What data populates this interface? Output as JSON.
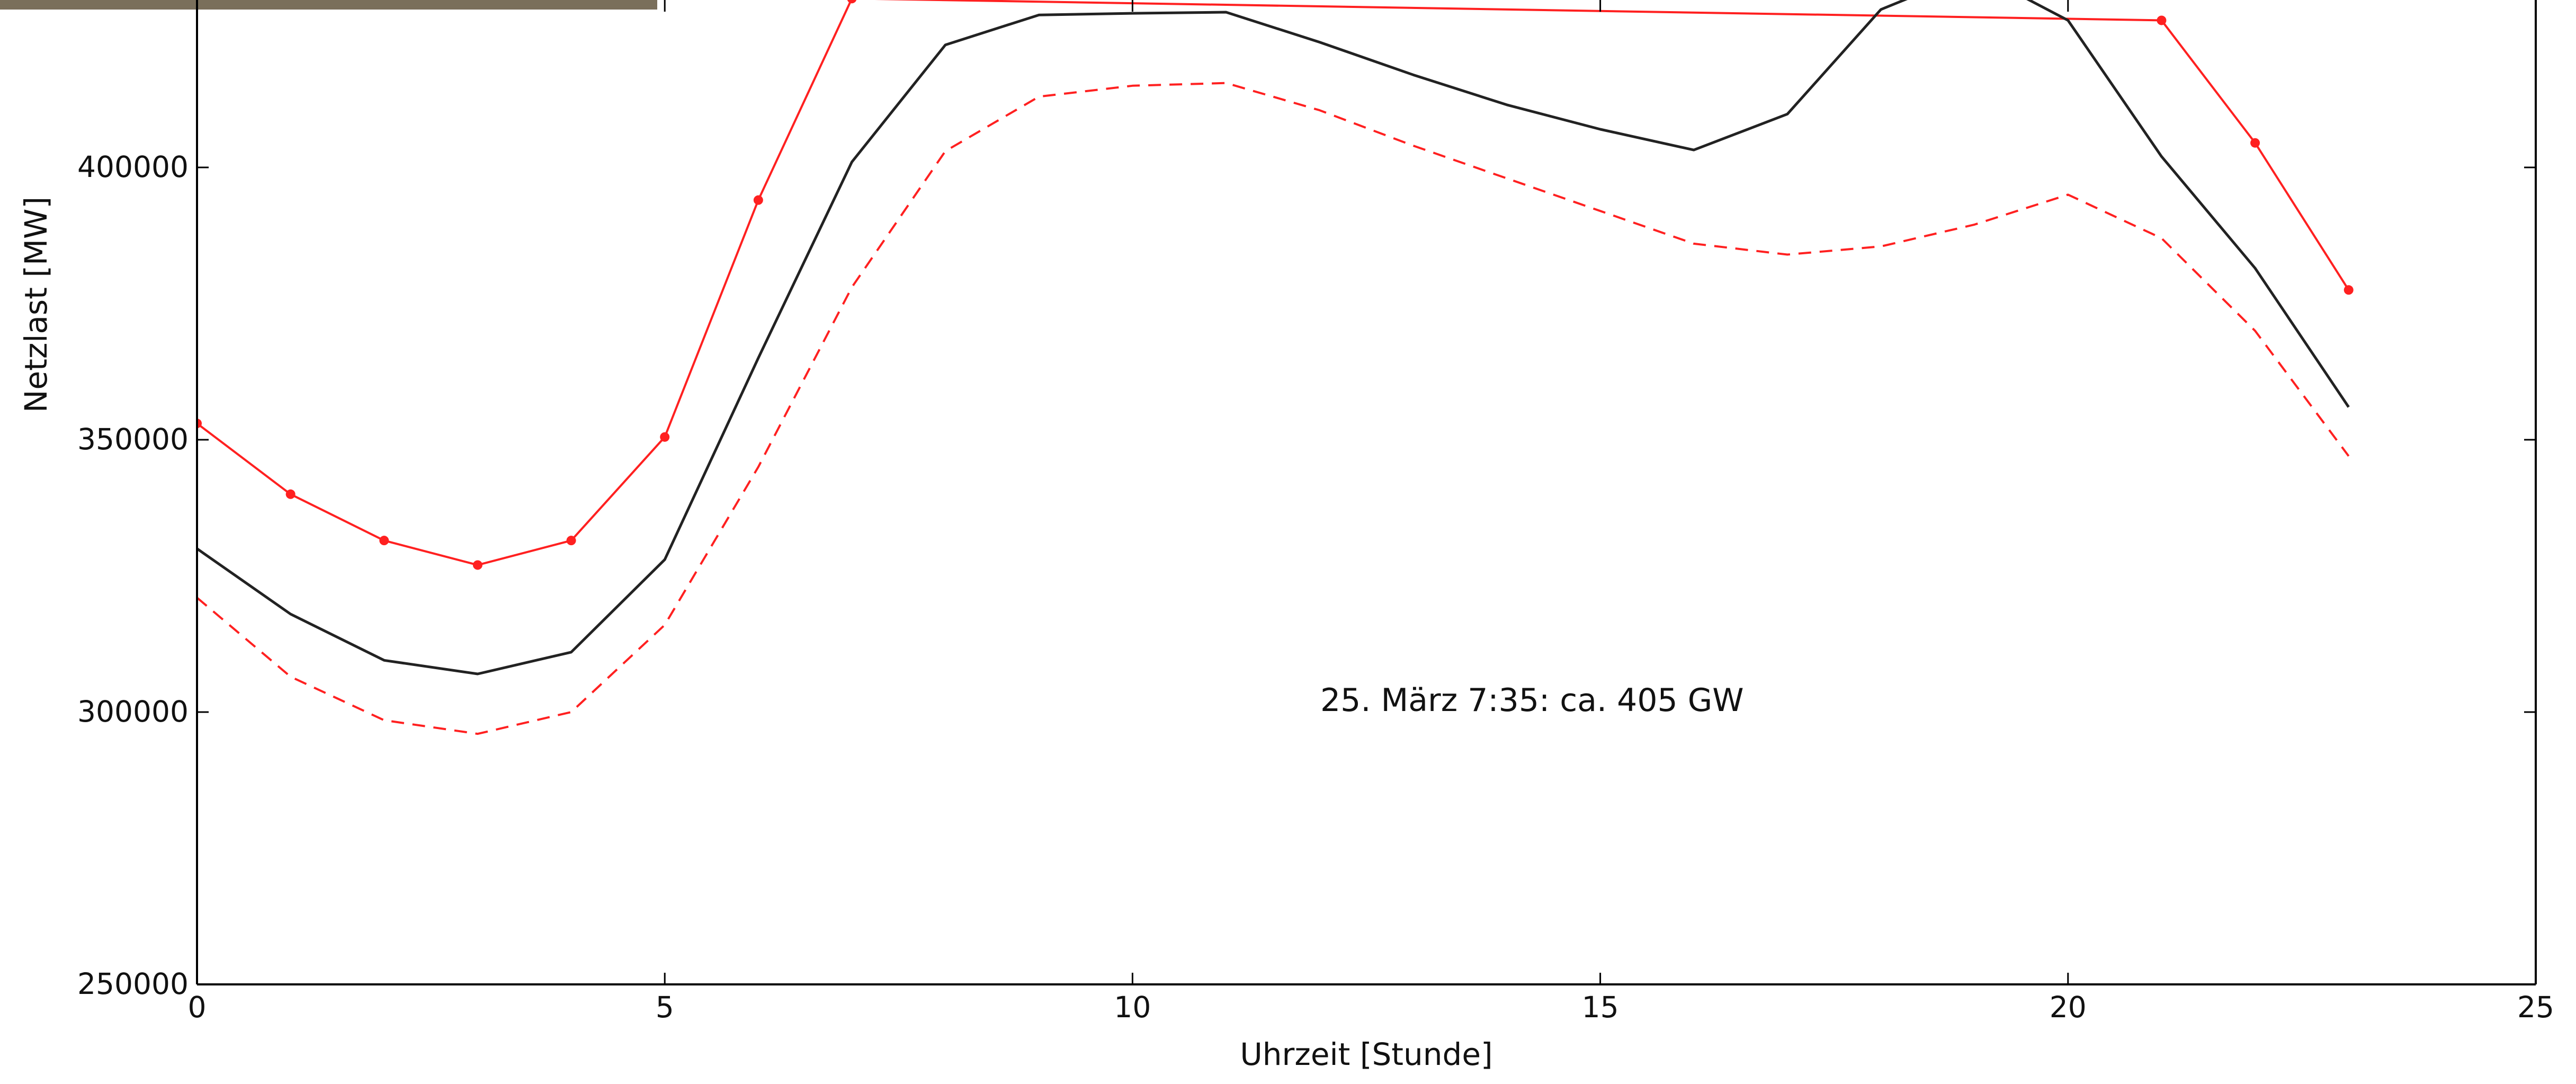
{
  "chart_data": {
    "type": "line",
    "title": "",
    "xlabel": "Uhrzeit [Stunde]",
    "ylabel": "Netzlast [MW]",
    "xlim": [
      0,
      25
    ],
    "ylim": [
      250000,
      430000
    ],
    "x_ticks": [
      0,
      5,
      10,
      15,
      20,
      25
    ],
    "y_ticks": [
      250000,
      300000,
      350000,
      400000
    ],
    "grid": false,
    "legend": "none",
    "annotation": "25. März 7:35: ca. 405 GW",
    "series": [
      {
        "style": "solid-with-markers",
        "color": "#ff2020",
        "x": [
          0,
          1,
          2,
          3,
          4,
          5,
          6,
          7,
          21,
          22,
          23
        ],
        "y": [
          353000,
          340000,
          331500,
          327000,
          331500,
          350500,
          394000,
          431000,
          427000,
          404500,
          377500
        ]
      },
      {
        "style": "solid",
        "color": "#222222",
        "x": [
          0,
          1,
          2,
          3,
          4,
          5,
          6,
          7,
          8,
          9,
          10,
          11,
          12,
          13,
          14,
          15,
          16,
          17,
          18,
          19,
          20,
          21,
          22,
          23
        ],
        "y": [
          330000,
          318000,
          309500,
          307000,
          311000,
          328000,
          365000,
          401000,
          422500,
          428000,
          428300,
          428500,
          423000,
          417000,
          411500,
          407000,
          403200,
          409800,
          429000,
          436000,
          427000,
          402000,
          381500,
          356000
        ]
      },
      {
        "style": "dashed",
        "color": "#ff2020",
        "x": [
          0,
          1,
          2,
          3,
          4,
          5,
          6,
          7,
          8,
          9,
          10,
          11,
          12,
          13,
          14,
          15,
          16,
          17,
          18,
          19,
          20,
          21,
          22,
          23
        ],
        "y": [
          321000,
          306500,
          298500,
          296000,
          300000,
          316000,
          345000,
          378000,
          403000,
          413000,
          415000,
          415500,
          410500,
          404000,
          398000,
          392000,
          386000,
          384000,
          385500,
          389500,
          395000,
          387000,
          370000,
          347000
        ]
      }
    ]
  }
}
